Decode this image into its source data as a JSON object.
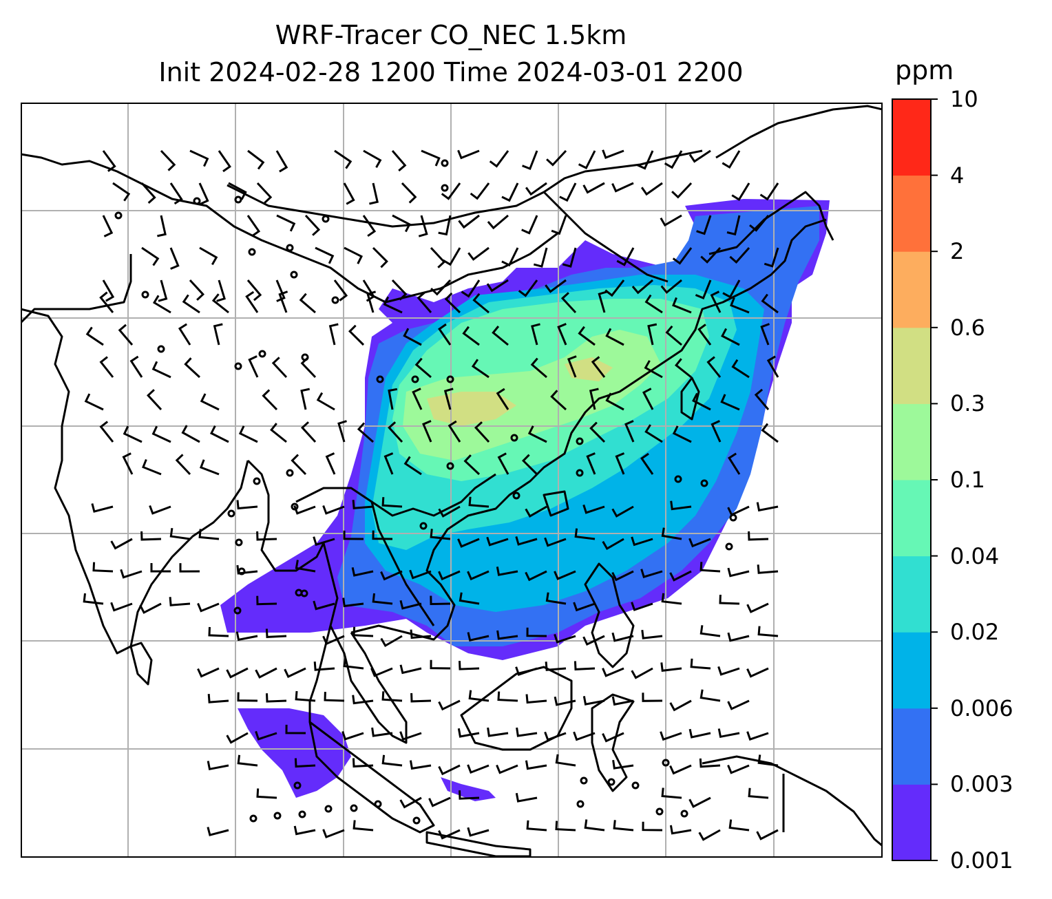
{
  "title_line1": "WRF-Tracer CO_NEC 1.5km",
  "title_line2": "Init 2024-02-28 1200 Time 2024-03-01 2200",
  "colorbar": {
    "unit": "ppm",
    "levels": [
      "0.001",
      "0.003",
      "0.006",
      "0.02",
      "0.04",
      "0.1",
      "0.3",
      "0.6",
      "2",
      "4",
      "10"
    ],
    "colors": [
      "#642cfb",
      "#3371f3",
      "#00b3e8",
      "#31dfd1",
      "#66f7b5",
      "#9df99a",
      "#d1df83",
      "#fdad5e",
      "#ff713a",
      "#ff2818"
    ]
  },
  "map": {
    "gridline_color": "#b0b0b0",
    "coastline_color": "#000000",
    "features": [
      "coastlines",
      "country-borders",
      "lat-lon-gridlines",
      "wind-barbs",
      "calm-wind-circles",
      "co-tracer-concentration-field"
    ]
  }
}
